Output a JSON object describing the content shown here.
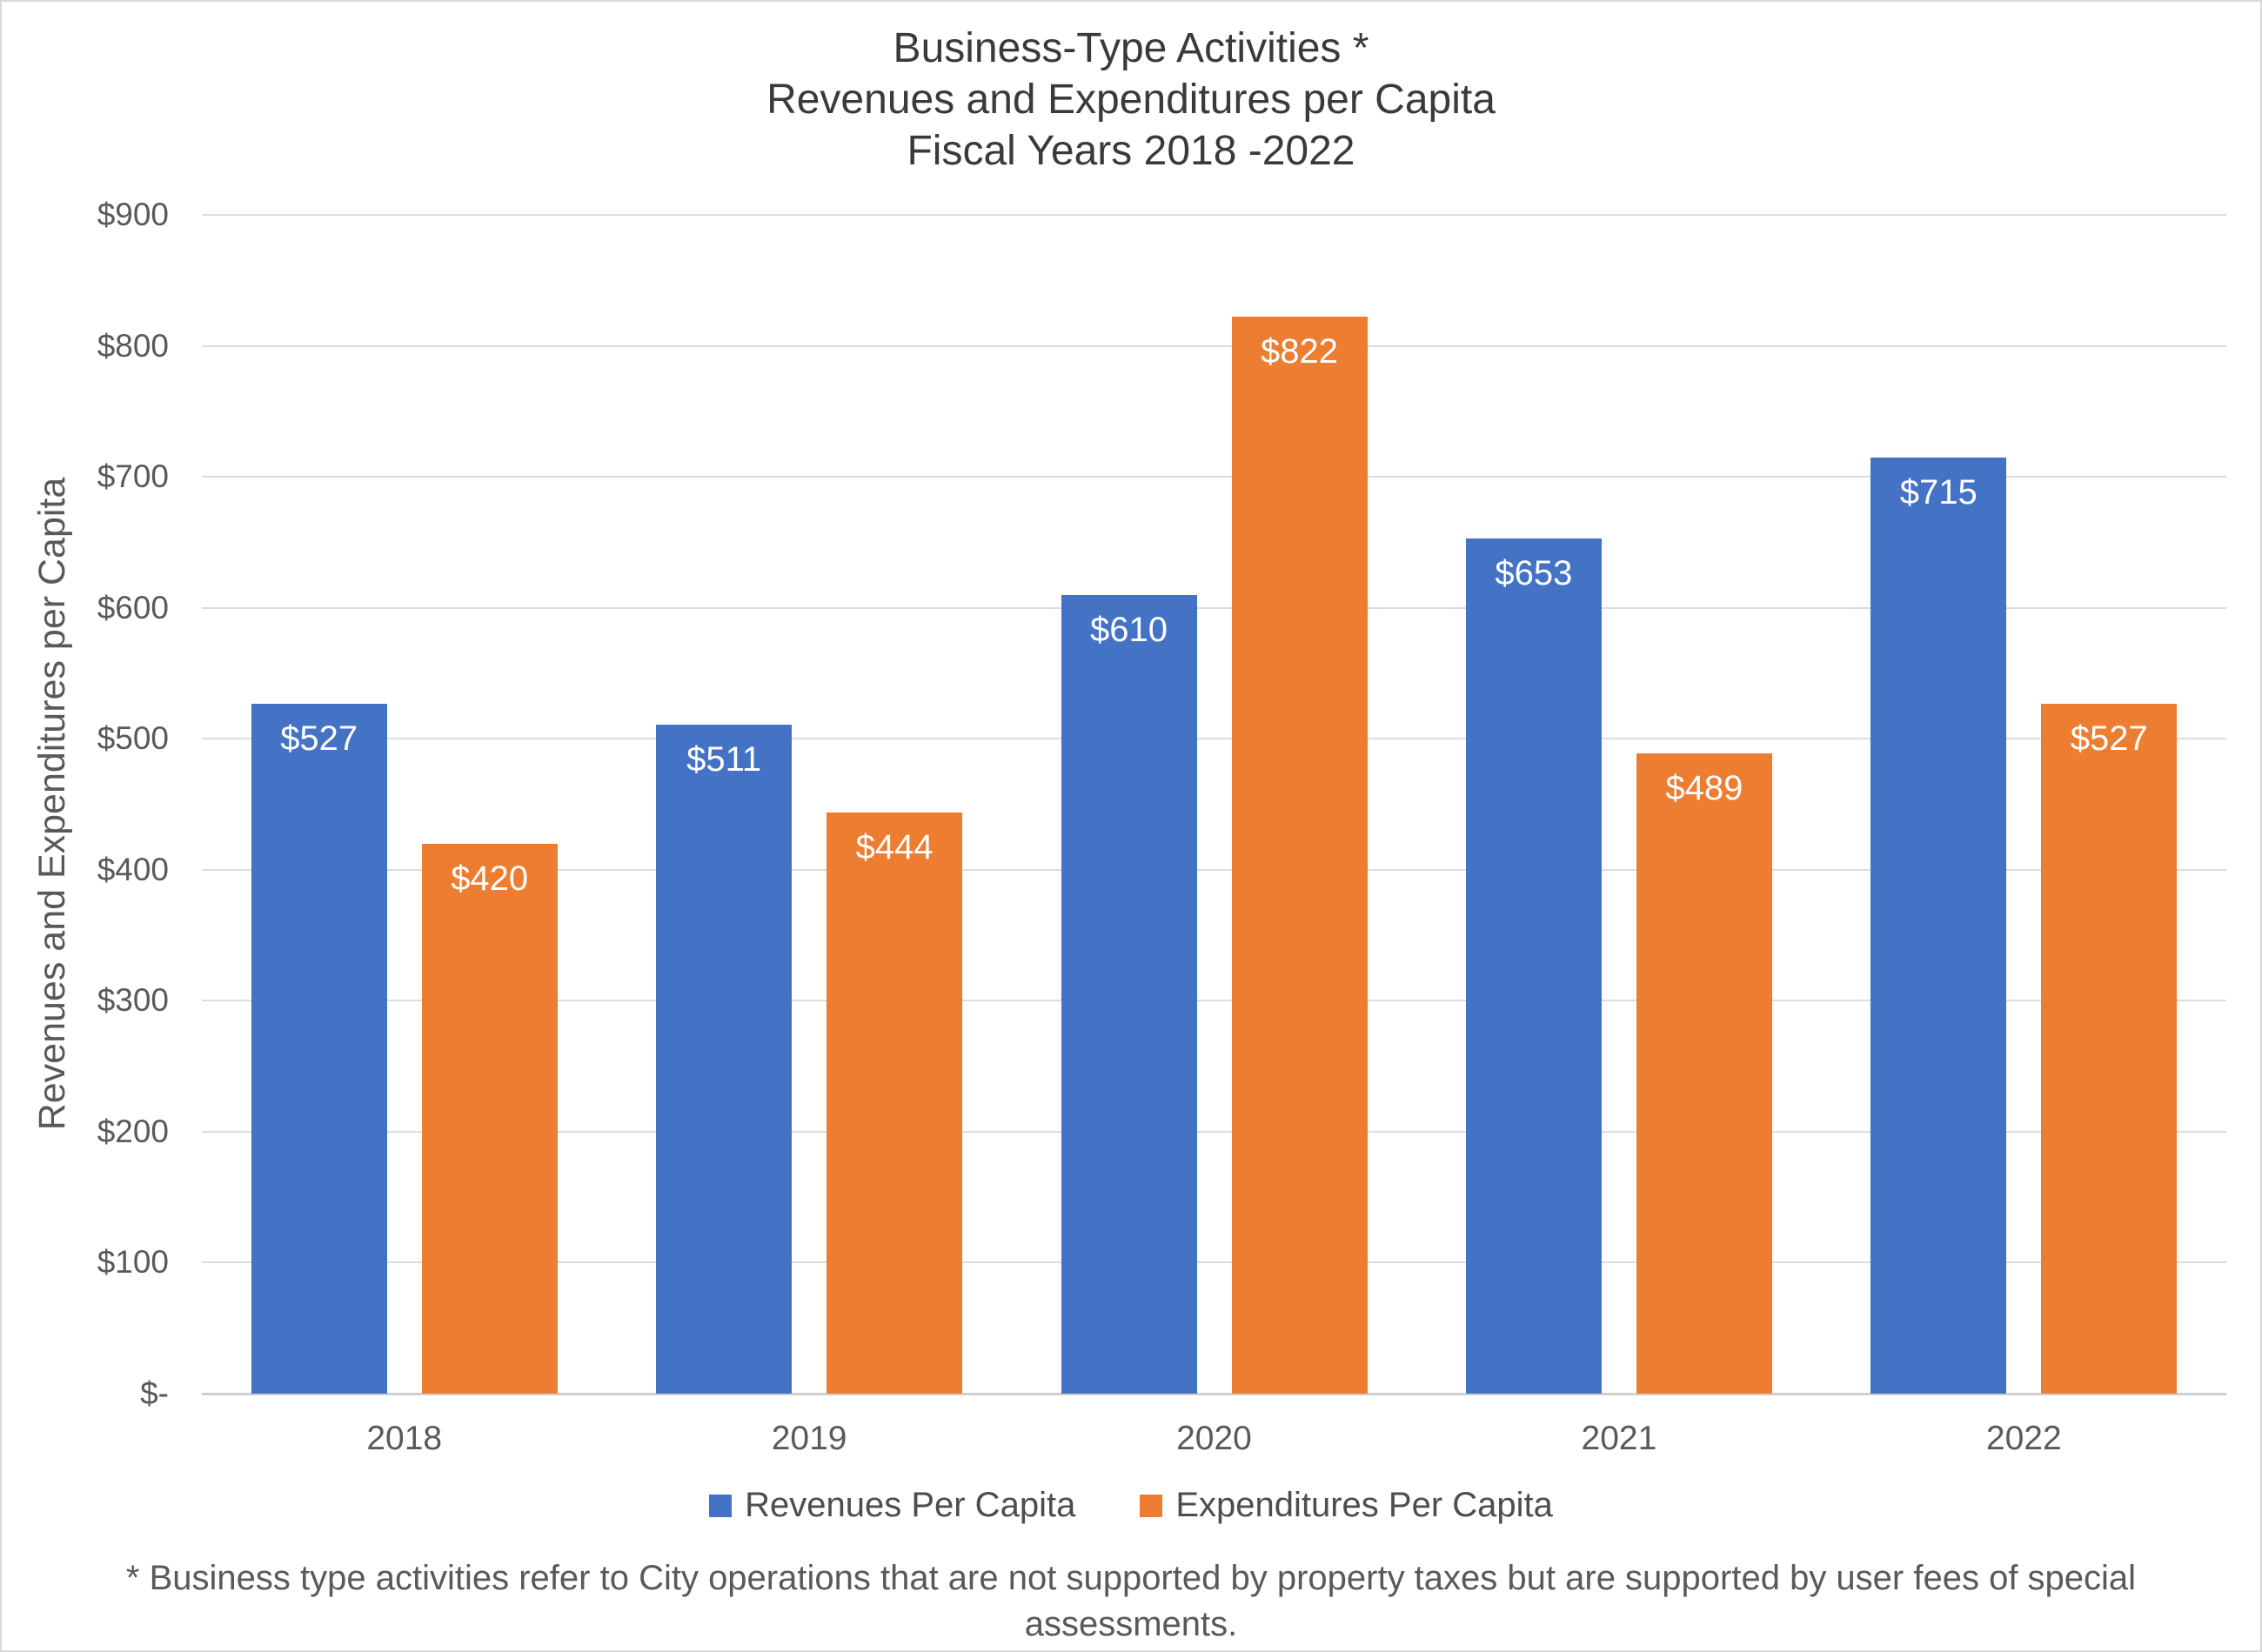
{
  "chart_data": {
    "type": "bar",
    "title": "Business-Type Activities *\nRevenues and Expenditures per Capita\nFiscal Years 2018 -2022",
    "ylabel": "Revenues and Expenditures per Capita",
    "xlabel": "",
    "ylim": [
      0,
      900
    ],
    "grid": "horizontal",
    "legend_position": "bottom",
    "categories": [
      "2018",
      "2019",
      "2020",
      "2021",
      "2022"
    ],
    "series": [
      {
        "name": "Revenues Per Capita",
        "color": "#4472C4",
        "values": [
          527,
          511,
          610,
          653,
          715
        ],
        "labels": [
          "$527",
          "$511",
          "$610",
          "$653",
          "$715"
        ]
      },
      {
        "name": "Expenditures Per Capita",
        "color": "#ED7D31",
        "values": [
          420,
          444,
          822,
          489,
          527
        ],
        "labels": [
          "$420",
          "$444",
          "$822",
          "$489",
          "$527"
        ]
      }
    ],
    "y_ticks": [
      {
        "value": 0,
        "label": "$-"
      },
      {
        "value": 100,
        "label": "$100"
      },
      {
        "value": 200,
        "label": "$200"
      },
      {
        "value": 300,
        "label": "$300"
      },
      {
        "value": 400,
        "label": "$400"
      },
      {
        "value": 500,
        "label": "$500"
      },
      {
        "value": 600,
        "label": "$600"
      },
      {
        "value": 700,
        "label": "$700"
      },
      {
        "value": 800,
        "label": "$800"
      },
      {
        "value": 900,
        "label": "$900"
      }
    ],
    "footnote": "* Business type activities refer to City operations that are not supported by property taxes but are supported by user fees of special assessments."
  }
}
